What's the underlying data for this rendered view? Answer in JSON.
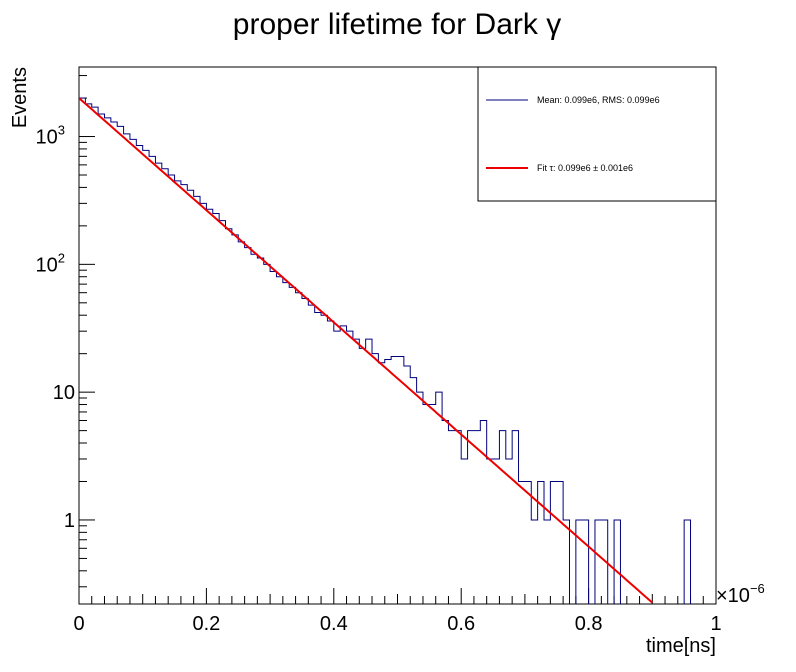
{
  "chart_data": {
    "type": "histogram",
    "title": "proper lifetime for Dark γ",
    "xlabel": "time[ns]",
    "ylabel": "Events",
    "x_exponent_label": "×10",
    "x_exponent_power": "−6",
    "xlim": [
      0,
      1.0
    ],
    "ylim": [
      0.22,
      3500
    ],
    "yscale": "log",
    "grid": false,
    "x_ticks": [
      {
        "value": 0,
        "label": "0"
      },
      {
        "value": 0.2,
        "label": "0.2"
      },
      {
        "value": 0.4,
        "label": "0.4"
      },
      {
        "value": 0.6,
        "label": "0.6"
      },
      {
        "value": 0.8,
        "label": "0.8"
      },
      {
        "value": 1.0,
        "label": "1"
      }
    ],
    "y_ticks": [
      {
        "value": 1,
        "base": "1",
        "exp": ""
      },
      {
        "value": 10,
        "base": "10",
        "exp": ""
      },
      {
        "value": 100,
        "base": "10",
        "exp": "2"
      },
      {
        "value": 1000,
        "base": "10",
        "exp": "3"
      }
    ],
    "bin_width": 0.01,
    "histogram": {
      "name": "Mean: 0.099e6, RMS: 0.099e6",
      "color": "#00007f",
      "bin_starts": [
        0.0,
        0.01,
        0.02,
        0.03,
        0.04,
        0.05,
        0.06,
        0.07,
        0.08,
        0.09,
        0.1,
        0.11,
        0.12,
        0.13,
        0.14,
        0.15,
        0.16,
        0.17,
        0.18,
        0.19,
        0.2,
        0.21,
        0.22,
        0.23,
        0.24,
        0.25,
        0.26,
        0.27,
        0.28,
        0.29,
        0.3,
        0.31,
        0.32,
        0.33,
        0.34,
        0.35,
        0.36,
        0.37,
        0.38,
        0.39,
        0.4,
        0.41,
        0.42,
        0.43,
        0.44,
        0.45,
        0.46,
        0.47,
        0.48,
        0.49,
        0.5,
        0.51,
        0.52,
        0.53,
        0.54,
        0.55,
        0.56,
        0.57,
        0.58,
        0.59,
        0.6,
        0.61,
        0.62,
        0.63,
        0.64,
        0.65,
        0.66,
        0.67,
        0.68,
        0.69,
        0.7,
        0.71,
        0.72,
        0.73,
        0.74,
        0.75,
        0.76,
        0.77,
        0.78,
        0.79,
        0.8,
        0.81,
        0.82,
        0.83,
        0.84,
        0.85,
        0.86,
        0.87,
        0.88,
        0.89,
        0.9,
        0.91,
        0.92,
        0.93,
        0.94,
        0.95,
        0.96,
        0.97,
        0.98,
        0.99
      ],
      "values": [
        2000,
        1800,
        1700,
        1500,
        1400,
        1300,
        1200,
        1050,
        950,
        850,
        780,
        700,
        620,
        560,
        500,
        450,
        420,
        380,
        340,
        300,
        270,
        250,
        220,
        190,
        170,
        150,
        135,
        120,
        112,
        100,
        88,
        80,
        72,
        66,
        60,
        54,
        48,
        42,
        40,
        36,
        30,
        33,
        30,
        26,
        22,
        26,
        20,
        17,
        18,
        19,
        19,
        16,
        13,
        10,
        8,
        8,
        10,
        6,
        5,
        5,
        3,
        5,
        5,
        6,
        3,
        3,
        5,
        3,
        5,
        2,
        2,
        1,
        2,
        1,
        2,
        2,
        1,
        0,
        1,
        1,
        0,
        1,
        1,
        0,
        1,
        0,
        0,
        0,
        0,
        0,
        0,
        0,
        0,
        0,
        0,
        1,
        0,
        0,
        0,
        0
      ]
    },
    "fit": {
      "name": "Fit τ: 0.099e6 ± 0.001e6",
      "color": "#ee0000",
      "amplitude": 2000,
      "tau": 0.099,
      "x_range": [
        0,
        0.9
      ]
    },
    "legend_position": "top-right"
  }
}
